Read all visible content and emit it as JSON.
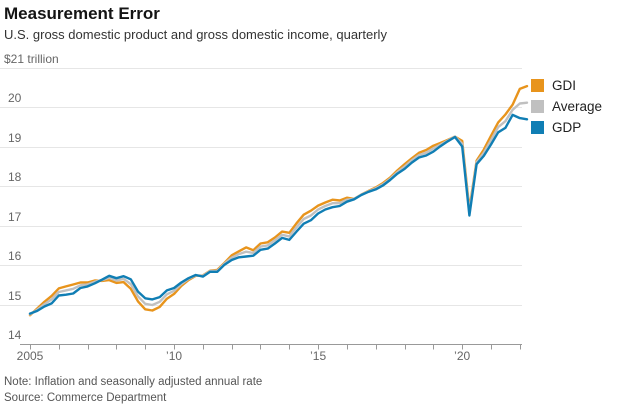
{
  "header": {
    "title": "Measurement Error",
    "subtitle": "U.S. gross domestic product and gross domestic income, quarterly"
  },
  "footer": {
    "note": "Note: Inflation and seasonally adjusted annual rate",
    "source": "Source: Commerce Department"
  },
  "chart_data": {
    "type": "line",
    "title": "Measurement Error",
    "subtitle": "U.S. gross domestic product and gross domestic income, quarterly",
    "unit_label": "$21 trillion",
    "ylim": [
      14,
      21
    ],
    "yticks": [
      14,
      15,
      16,
      17,
      18,
      19,
      20,
      21
    ],
    "grid": "horizontal",
    "legend_position": "top-right",
    "x_start_year": 2005,
    "frequency": "quarterly",
    "x_tick_interval_years": 1,
    "x_labeled_ticks": [
      {
        "year": 2005,
        "label": "2005"
      },
      {
        "year": 2010,
        "label": "’10"
      },
      {
        "year": 2015,
        "label": "’15"
      },
      {
        "year": 2020,
        "label": "’20"
      }
    ],
    "series": [
      {
        "name": "GDI",
        "color": "#E8941C",
        "values": [
          14.73,
          14.9,
          15.07,
          15.22,
          15.41,
          15.46,
          15.51,
          15.56,
          15.56,
          15.61,
          15.6,
          15.62,
          15.55,
          15.57,
          15.4,
          15.08,
          14.88,
          14.85,
          14.94,
          15.15,
          15.27,
          15.47,
          15.62,
          15.73,
          15.74,
          15.86,
          15.88,
          16.06,
          16.25,
          16.35,
          16.45,
          16.38,
          16.55,
          16.58,
          16.7,
          16.85,
          16.82,
          17.06,
          17.28,
          17.38,
          17.51,
          17.59,
          17.66,
          17.64,
          17.71,
          17.68,
          17.79,
          17.88,
          17.97,
          18.08,
          18.22,
          18.4,
          18.56,
          18.71,
          18.85,
          18.92,
          19.03,
          19.1,
          19.18,
          19.26,
          19.15,
          17.42,
          18.65,
          18.93,
          19.28,
          19.62,
          19.82,
          20.07,
          20.47,
          20.54
        ]
      },
      {
        "name": "Average",
        "color": "#C0C0C0",
        "values": [
          14.75,
          14.87,
          15.01,
          15.13,
          15.32,
          15.36,
          15.4,
          15.49,
          15.51,
          15.58,
          15.62,
          15.68,
          15.61,
          15.65,
          15.52,
          15.21,
          15.02,
          14.99,
          15.07,
          15.26,
          15.35,
          15.52,
          15.65,
          15.74,
          15.73,
          15.85,
          15.86,
          16.04,
          16.19,
          16.28,
          16.34,
          16.31,
          16.47,
          16.5,
          16.63,
          16.77,
          16.73,
          16.96,
          17.17,
          17.26,
          17.41,
          17.5,
          17.57,
          17.57,
          17.66,
          17.68,
          17.79,
          17.87,
          17.95,
          18.05,
          18.19,
          18.36,
          18.5,
          18.66,
          18.79,
          18.85,
          18.96,
          19.06,
          19.16,
          19.26,
          19.08,
          17.34,
          18.61,
          18.85,
          19.17,
          19.5,
          19.65,
          19.94,
          20.1,
          20.12
        ]
      },
      {
        "name": "GDP",
        "color": "#107EB4",
        "values": [
          14.77,
          14.84,
          14.95,
          15.03,
          15.23,
          15.25,
          15.28,
          15.42,
          15.46,
          15.54,
          15.63,
          15.73,
          15.67,
          15.72,
          15.64,
          15.33,
          15.16,
          15.13,
          15.19,
          15.36,
          15.42,
          15.56,
          15.67,
          15.75,
          15.71,
          15.83,
          15.83,
          16.01,
          16.13,
          16.2,
          16.22,
          16.24,
          16.39,
          16.42,
          16.55,
          16.69,
          16.64,
          16.85,
          17.05,
          17.14,
          17.31,
          17.41,
          17.47,
          17.5,
          17.61,
          17.67,
          17.78,
          17.86,
          17.92,
          18.02,
          18.16,
          18.32,
          18.44,
          18.6,
          18.73,
          18.78,
          18.88,
          19.02,
          19.14,
          19.25,
          19.01,
          17.26,
          18.56,
          18.77,
          19.06,
          19.37,
          19.48,
          19.81,
          19.73,
          19.7
        ]
      }
    ]
  }
}
